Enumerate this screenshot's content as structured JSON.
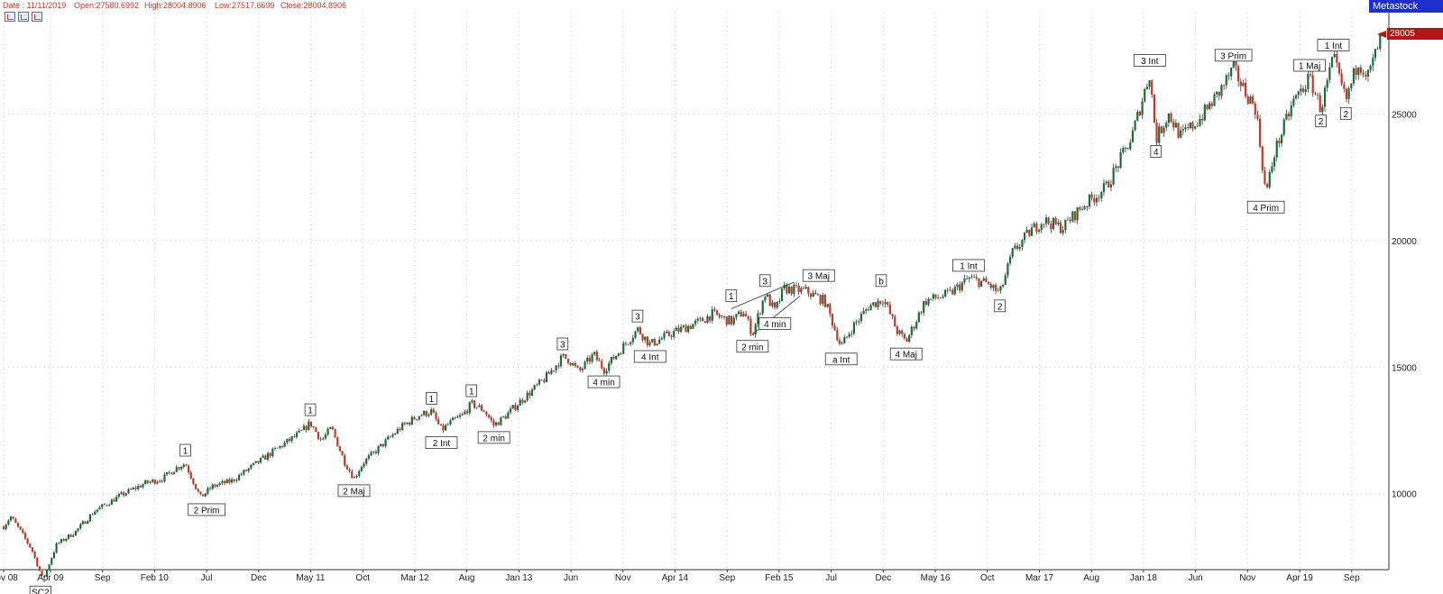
{
  "header": {
    "date": "Date : 11/11/2019",
    "open": "Open:27580.6992",
    "high": "High:28004.8906",
    "low": "Low:27517.6699",
    "close": "Close:28004.8906"
  },
  "brand": "Metastock",
  "last_price_tag": "28005",
  "colors": {
    "up": "#1e6b3a",
    "down": "#c0392b",
    "header": "#c0392b",
    "brand_bg": "#1e2fd0",
    "price_tag_bg": "#b01818"
  },
  "toolbar_icons": [
    "chart-icon",
    "chart-icon",
    "chart-icon"
  ],
  "chart_data": {
    "type": "line",
    "ylim": [
      7000,
      29000
    ],
    "xlim": [
      2008.875,
      2019.95
    ],
    "grid": true,
    "y_axis_position": "right",
    "y_ticks": [
      {
        "value": 10000,
        "label": "10000"
      },
      {
        "value": 15000,
        "label": "15000"
      },
      {
        "value": 20000,
        "label": "20000"
      },
      {
        "value": 25000,
        "label": "25000"
      }
    ],
    "x_ticks": [
      {
        "t": 2008.875,
        "label": "Nov 08"
      },
      {
        "t": 2009.25,
        "label": "Apr 09"
      },
      {
        "t": 2009.667,
        "label": "Sep"
      },
      {
        "t": 2010.083,
        "label": "Feb 10"
      },
      {
        "t": 2010.5,
        "label": "Jul"
      },
      {
        "t": 2010.917,
        "label": "Dec"
      },
      {
        "t": 2011.333,
        "label": "May 11"
      },
      {
        "t": 2011.75,
        "label": "Oct"
      },
      {
        "t": 2012.167,
        "label": "Mar 12"
      },
      {
        "t": 2012.583,
        "label": "Aug"
      },
      {
        "t": 2013.0,
        "label": "Jan 13"
      },
      {
        "t": 2013.417,
        "label": "Jun"
      },
      {
        "t": 2013.833,
        "label": "Nov"
      },
      {
        "t": 2014.25,
        "label": "Apr 14"
      },
      {
        "t": 2014.667,
        "label": "Sep"
      },
      {
        "t": 2015.083,
        "label": "Feb 15"
      },
      {
        "t": 2015.5,
        "label": "Jul"
      },
      {
        "t": 2015.917,
        "label": "Dec"
      },
      {
        "t": 2016.333,
        "label": "May 16"
      },
      {
        "t": 2016.75,
        "label": "Oct"
      },
      {
        "t": 2017.167,
        "label": "Mar 17"
      },
      {
        "t": 2017.583,
        "label": "Aug"
      },
      {
        "t": 2018.0,
        "label": "Jan 18"
      },
      {
        "t": 2018.417,
        "label": "Jun"
      },
      {
        "t": 2018.833,
        "label": "Nov"
      },
      {
        "t": 2019.25,
        "label": "Apr 19"
      },
      {
        "t": 2019.667,
        "label": "Sep"
      }
    ],
    "price_path": [
      [
        2008.875,
        8700
      ],
      [
        2008.93,
        9100
      ],
      [
        2009.0,
        8600
      ],
      [
        2009.1,
        7800
      ],
      [
        2009.19,
        6600
      ],
      [
        2009.3,
        8000
      ],
      [
        2009.45,
        8500
      ],
      [
        2009.6,
        9300
      ],
      [
        2009.8,
        9900
      ],
      [
        2010.0,
        10400
      ],
      [
        2010.15,
        10600
      ],
      [
        2010.25,
        11000
      ],
      [
        2010.33,
        11200
      ],
      [
        2010.45,
        9850
      ],
      [
        2010.55,
        10300
      ],
      [
        2010.7,
        10500
      ],
      [
        2010.9,
        11200
      ],
      [
        2011.1,
        11900
      ],
      [
        2011.25,
        12400
      ],
      [
        2011.33,
        12800
      ],
      [
        2011.42,
        12100
      ],
      [
        2011.5,
        12600
      ],
      [
        2011.6,
        11300
      ],
      [
        2011.68,
        10600
      ],
      [
        2011.75,
        11200
      ],
      [
        2011.9,
        11900
      ],
      [
        2012.05,
        12600
      ],
      [
        2012.2,
        13100
      ],
      [
        2012.3,
        13250
      ],
      [
        2012.38,
        12500
      ],
      [
        2012.45,
        12800
      ],
      [
        2012.55,
        13100
      ],
      [
        2012.62,
        13550
      ],
      [
        2012.72,
        13300
      ],
      [
        2012.8,
        12700
      ],
      [
        2012.9,
        13100
      ],
      [
        2013.0,
        13600
      ],
      [
        2013.2,
        14500
      ],
      [
        2013.35,
        15400
      ],
      [
        2013.4,
        15300
      ],
      [
        2013.48,
        14800
      ],
      [
        2013.6,
        15500
      ],
      [
        2013.68,
        14900
      ],
      [
        2013.8,
        15600
      ],
      [
        2013.95,
        16500
      ],
      [
        2014.05,
        15900
      ],
      [
        2014.25,
        16400
      ],
      [
        2014.45,
        16800
      ],
      [
        2014.55,
        17100
      ],
      [
        2014.7,
        16800
      ],
      [
        2014.8,
        17200
      ],
      [
        2014.87,
        16300
      ],
      [
        2014.97,
        17900
      ],
      [
        2015.05,
        17200
      ],
      [
        2015.12,
        18100
      ],
      [
        2015.3,
        18000
      ],
      [
        2015.45,
        17600
      ],
      [
        2015.58,
        15800
      ],
      [
        2015.66,
        16500
      ],
      [
        2015.8,
        17400
      ],
      [
        2015.92,
        17700
      ],
      [
        2016.03,
        16400
      ],
      [
        2016.1,
        16000
      ],
      [
        2016.25,
        17600
      ],
      [
        2016.45,
        17900
      ],
      [
        2016.6,
        18500
      ],
      [
        2016.75,
        18300
      ],
      [
        2016.85,
        17900
      ],
      [
        2016.95,
        19500
      ],
      [
        2017.1,
        20400
      ],
      [
        2017.2,
        20800
      ],
      [
        2017.35,
        20500
      ],
      [
        2017.5,
        21300
      ],
      [
        2017.7,
        22100
      ],
      [
        2017.9,
        24000
      ],
      [
        2018.05,
        26600
      ],
      [
        2018.1,
        24000
      ],
      [
        2018.2,
        25000
      ],
      [
        2018.3,
        24100
      ],
      [
        2018.45,
        24800
      ],
      [
        2018.6,
        25800
      ],
      [
        2018.72,
        26800
      ],
      [
        2018.8,
        26000
      ],
      [
        2018.9,
        25200
      ],
      [
        2018.98,
        21800
      ],
      [
        2019.05,
        23500
      ],
      [
        2019.2,
        25500
      ],
      [
        2019.33,
        26400
      ],
      [
        2019.42,
        25200
      ],
      [
        2019.52,
        27200
      ],
      [
        2019.62,
        25500
      ],
      [
        2019.72,
        27100
      ],
      [
        2019.8,
        26500
      ],
      [
        2019.9,
        28005
      ]
    ],
    "annotations": [
      {
        "label": "SC2",
        "t": 2009.17,
        "v": 6600,
        "pos": "below"
      },
      {
        "label": "1",
        "t": 2010.33,
        "v": 11200,
        "pos": "above"
      },
      {
        "label": "2 Prim",
        "t": 2010.5,
        "v": 9850,
        "pos": "below"
      },
      {
        "label": "1",
        "t": 2011.33,
        "v": 12800,
        "pos": "above"
      },
      {
        "label": "2 Maj",
        "t": 2011.68,
        "v": 10600,
        "pos": "below"
      },
      {
        "label": "1",
        "t": 2012.3,
        "v": 13250,
        "pos": "above"
      },
      {
        "label": "2 Int",
        "t": 2012.38,
        "v": 12500,
        "pos": "below"
      },
      {
        "label": "1",
        "t": 2012.62,
        "v": 13550,
        "pos": "above"
      },
      {
        "label": "2 min",
        "t": 2012.8,
        "v": 12700,
        "pos": "below"
      },
      {
        "label": "3",
        "t": 2013.35,
        "v": 15400,
        "pos": "above"
      },
      {
        "label": "4 min",
        "t": 2013.68,
        "v": 14900,
        "pos": "below"
      },
      {
        "label": "3",
        "t": 2013.95,
        "v": 16500,
        "pos": "above"
      },
      {
        "label": "4 Int",
        "t": 2014.05,
        "v": 15900,
        "pos": "below"
      },
      {
        "label": "1",
        "t": 2014.7,
        "v": 17300,
        "pos": "above"
      },
      {
        "label": "2 min",
        "t": 2014.87,
        "v": 16300,
        "pos": "below"
      },
      {
        "label": "3",
        "t": 2014.97,
        "v": 17900,
        "pos": "above"
      },
      {
        "label": "4 min",
        "t": 2015.05,
        "v": 17200,
        "pos": "below"
      },
      {
        "label": "3 Maj",
        "t": 2015.4,
        "v": 18100,
        "pos": "above"
      },
      {
        "label": "a Int",
        "t": 2015.58,
        "v": 15800,
        "pos": "below"
      },
      {
        "label": "b",
        "t": 2015.9,
        "v": 17900,
        "pos": "above"
      },
      {
        "label": "4 Maj",
        "t": 2016.1,
        "v": 16000,
        "pos": "below"
      },
      {
        "label": "1 Int",
        "t": 2016.6,
        "v": 18500,
        "pos": "above"
      },
      {
        "label": "2",
        "t": 2016.85,
        "v": 17900,
        "pos": "below"
      },
      {
        "label": "3 Int",
        "t": 2018.05,
        "v": 26600,
        "pos": "above"
      },
      {
        "label": "4",
        "t": 2018.1,
        "v": 24000,
        "pos": "below"
      },
      {
        "label": "3 Prim",
        "t": 2018.72,
        "v": 26800,
        "pos": "above"
      },
      {
        "label": "4 Prim",
        "t": 2018.98,
        "v": 21800,
        "pos": "below"
      },
      {
        "label": "1 Maj",
        "t": 2019.33,
        "v": 26400,
        "pos": "above"
      },
      {
        "label": "2",
        "t": 2019.42,
        "v": 25200,
        "pos": "below"
      },
      {
        "label": "1 Int",
        "t": 2019.52,
        "v": 27200,
        "pos": "above"
      },
      {
        "label": "2",
        "t": 2019.62,
        "v": 25500,
        "pos": "below"
      }
    ],
    "trendlines": [
      {
        "from": [
          2014.7,
          17300
        ],
        "to": [
          2015.2,
          18350
        ]
      },
      {
        "from": [
          2014.87,
          16300
        ],
        "to": [
          2015.25,
          17800
        ]
      }
    ]
  }
}
